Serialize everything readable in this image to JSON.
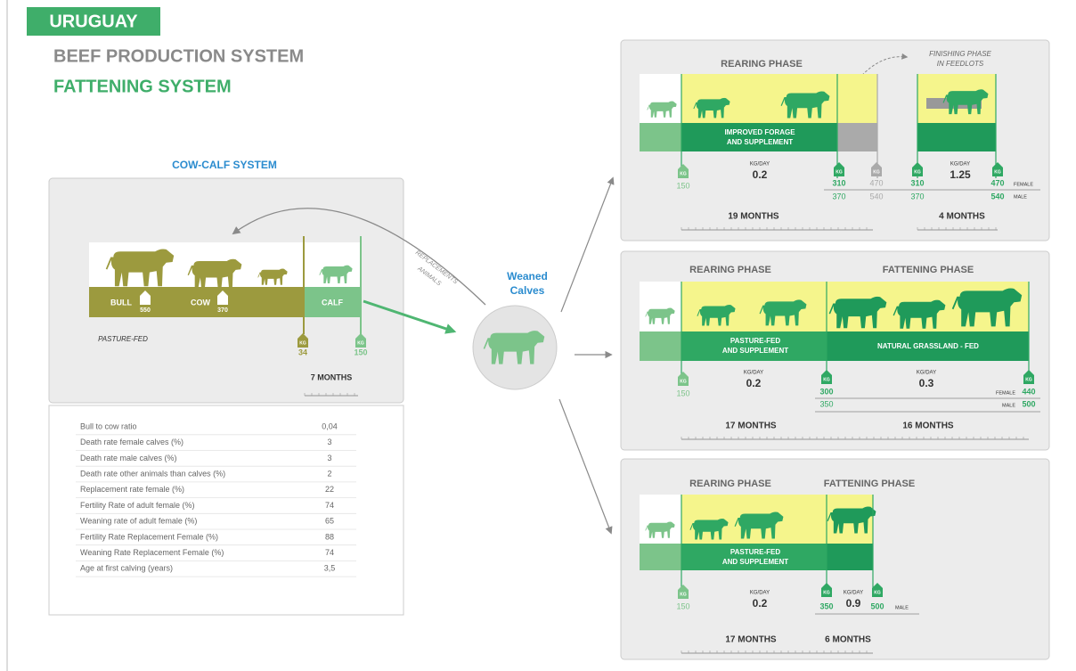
{
  "header": {
    "country": "URUGUAY",
    "system": "BEEF PRODUCTION SYSTEM",
    "subsystem": "FATTENING SYSTEM"
  },
  "labels": {
    "kg": "KG",
    "kg_day": "KG/DAY",
    "female": "FEMALE",
    "male": "MALE"
  },
  "cow_calf": {
    "title": "COW-CALF SYSTEM",
    "bull": "BULL",
    "bull_weight": "550",
    "cow": "COW",
    "cow_weight": "370",
    "calf": "CALF",
    "feed": "PASTURE-FED",
    "birth_weight": "34",
    "weaning_weight": "150",
    "duration": "7 MONTHS"
  },
  "parameters": [
    {
      "label": "Bull to cow ratio",
      "value": "0,04"
    },
    {
      "label": "Death rate female calves (%)",
      "value": "3"
    },
    {
      "label": "Death rate male calves (%)",
      "value": "3"
    },
    {
      "label": "Death rate other animals than calves (%)",
      "value": "2"
    },
    {
      "label": "Replacement rate female (%)",
      "value": "22"
    },
    {
      "label": "Fertility Rate of adult female (%)",
      "value": "74"
    },
    {
      "label": "Weaning rate of adult female (%)",
      "value": "65"
    },
    {
      "label": "Fertility Rate Replacement Female (%)",
      "value": "88"
    },
    {
      "label": "Weaning Rate Replacement Female (%)",
      "value": "74"
    },
    {
      "label": "Age at first calving (years)",
      "value": "3,5"
    }
  ],
  "transfer": {
    "replacements": [
      "REPLACEMENTS",
      "ANIMALS"
    ],
    "weaned": [
      "Weaned",
      "Calves"
    ]
  },
  "systems": [
    {
      "rearing_title": "REARING PHASE",
      "rearing_feed": [
        "IMPROVED FORAGE",
        "AND SUPPLEMENT"
      ],
      "start_weight": "150",
      "rearing_gain": "0.2",
      "rearing_end_female": "310",
      "rearing_end_male": "370",
      "alt_end_female": "470",
      "alt_end_male": "540",
      "finishing_title": [
        "FINISHING PHASE",
        "IN FEEDLOTS"
      ],
      "finishing_start_female": "310",
      "finishing_start_male": "370",
      "finishing_gain": "1.25",
      "end_female": "470",
      "end_male": "540",
      "rearing_duration": "19 MONTHS",
      "finishing_duration": "4 MONTHS"
    },
    {
      "rearing_title": "REARING PHASE",
      "fattening_title": "FATTENING PHASE",
      "rearing_feed": [
        "PASTURE-FED",
        "AND SUPPLEMENT"
      ],
      "fattening_feed": "NATURAL GRASSLAND - FED",
      "start_weight": "150",
      "rearing_gain": "0.2",
      "mid_female": "300",
      "mid_male": "350",
      "fattening_gain": "0.3",
      "end_female": "440",
      "end_male": "500",
      "rearing_duration": "17 MONTHS",
      "fattening_duration": "16 MONTHS"
    },
    {
      "rearing_title": "REARING PHASE",
      "fattening_title": "FATTENING PHASE",
      "rearing_feed": [
        "PASTURE-FED",
        "AND SUPPLEMENT"
      ],
      "start_weight": "150",
      "rearing_gain": "0.2",
      "mid_weight": "350",
      "fattening_gain": "0.9",
      "end_weight": "500",
      "rearing_duration": "17 MONTHS",
      "fattening_duration": "6 MONTHS"
    }
  ]
}
